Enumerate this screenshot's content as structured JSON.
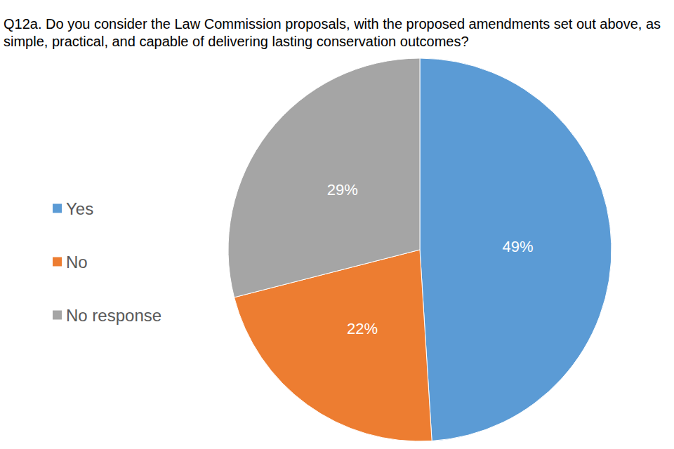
{
  "chart_data": {
    "type": "pie",
    "title": "Q12a. Do you consider the Law Commission proposals, with the proposed amendments set out above, as simple, practical, and capable of delivering lasting conservation outcomes?",
    "categories": [
      "Yes",
      "No",
      "No response"
    ],
    "values": [
      49,
      22,
      29
    ],
    "value_labels": [
      "49%",
      "22%",
      "29%"
    ],
    "colors": [
      "#5b9bd5",
      "#ed7d31",
      "#a5a5a5"
    ],
    "data_labels": true,
    "legend": "left"
  }
}
